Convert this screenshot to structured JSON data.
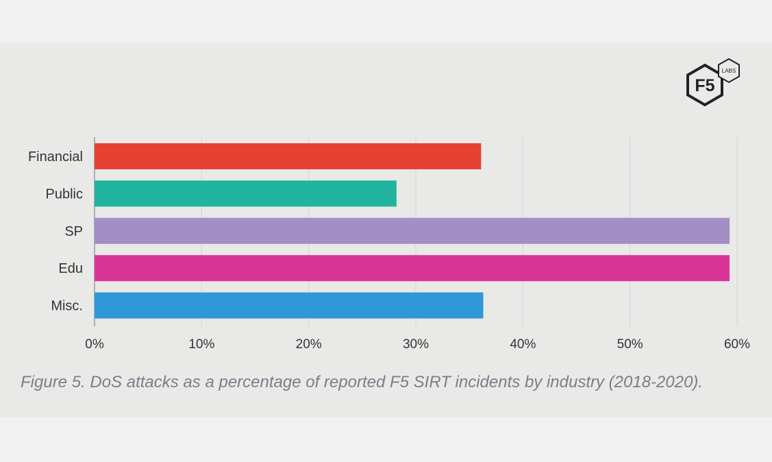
{
  "logo": {
    "mark": "F5",
    "badge": "LABS"
  },
  "chart_data": {
    "type": "bar",
    "orientation": "horizontal",
    "categories": [
      "Financial",
      "Public",
      "SP",
      "Edu",
      "Misc."
    ],
    "values": [
      36.1,
      28.2,
      59.3,
      59.3,
      36.3
    ],
    "colors": [
      "#e84033",
      "#20b39d",
      "#a38ec6",
      "#d93596",
      "#2f98d6"
    ],
    "xlim": [
      0,
      60
    ],
    "xticks": [
      "0%",
      "10%",
      "20%",
      "30%",
      "40%",
      "50%",
      "60%"
    ],
    "grid": true,
    "caption": "Figure 5. DoS attacks as a percentage of reported F5 SIRT incidents by industry (2018-2020)."
  }
}
